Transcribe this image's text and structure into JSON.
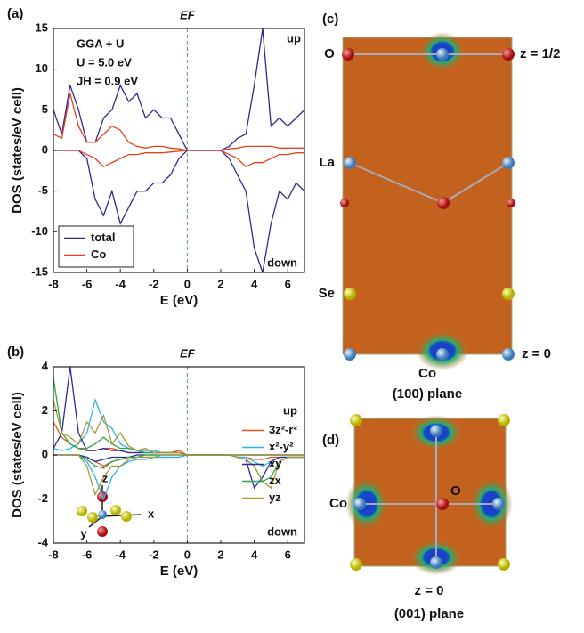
{
  "chart_data": [
    {
      "type": "line",
      "panel_label": "(a)",
      "fermi_label": "EF",
      "fermi_level": 0,
      "xlabel": "E (eV)",
      "ylabel": "DOS (states/eV cell)",
      "x": [
        -8,
        -7.5,
        -7,
        -6.5,
        -6,
        -5.5,
        -5,
        -4.5,
        -4,
        -3.5,
        -3,
        -2.5,
        -2,
        -1.5,
        -1,
        -0.5,
        0,
        0.5,
        1,
        1.5,
        2,
        2.5,
        3,
        3.5,
        4,
        4.5,
        5,
        5.5,
        6,
        6.5,
        7
      ],
      "xlim": [
        -8,
        7
      ],
      "xticks": [
        -8,
        -6,
        -4,
        -2,
        0,
        2,
        4,
        6
      ],
      "ylim": [
        -15,
        15
      ],
      "yticks": [
        -15,
        -10,
        -5,
        0,
        5,
        10,
        15
      ],
      "legend": "lower left",
      "annotations": [
        "GGA + U",
        "U = 5.0 eV",
        "JH = 0.9 eV",
        "up",
        "down"
      ],
      "series": [
        {
          "name": "total",
          "color": "#2b2b8f",
          "values": [
            5,
            2,
            8,
            5,
            1,
            1,
            4,
            5,
            8,
            6,
            7,
            4,
            5,
            4,
            4,
            2,
            0,
            0,
            0,
            0,
            0,
            0.5,
            1.5,
            2,
            8,
            15,
            3,
            4,
            3,
            4,
            5
          ],
          "values_down": [
            0,
            0,
            0,
            0,
            -1,
            -6,
            -8,
            -5,
            -9,
            -7,
            -5,
            -5,
            -4,
            -4,
            -3,
            -1,
            0,
            0,
            0,
            0,
            0,
            -1,
            -3,
            -5,
            -12,
            -15,
            -9,
            -5,
            -6,
            -4,
            -5
          ]
        },
        {
          "name": "Co",
          "color": "#e8401c",
          "values": [
            2,
            1.5,
            7,
            3,
            1,
            1,
            2,
            3,
            2.5,
            1,
            0.5,
            0.3,
            0.5,
            0.5,
            0.3,
            0.2,
            0,
            0,
            0,
            0,
            0,
            0.2,
            0.3,
            0.5,
            0.5,
            0.5,
            0.5,
            0.3,
            0.3,
            0.3,
            0.3
          ],
          "values_down": [
            0,
            0,
            0,
            0,
            -0.5,
            -1,
            -2,
            -1.5,
            -1,
            -0.5,
            -0.5,
            -0.3,
            -0.3,
            -0.3,
            -0.2,
            -0.1,
            0,
            0,
            0,
            0,
            0,
            -0.5,
            -1,
            -2,
            -1.5,
            -1.5,
            -1,
            -0.5,
            -0.5,
            -0.3,
            -0.3
          ]
        }
      ]
    },
    {
      "type": "line",
      "panel_label": "(b)",
      "fermi_label": "EF",
      "fermi_level": 0,
      "xlabel": "E (eV)",
      "ylabel": "DOS (states/eV cell)",
      "x": [
        -8,
        -7.5,
        -7,
        -6.5,
        -6,
        -5.5,
        -5,
        -4.5,
        -4,
        -3.5,
        -3,
        -2.5,
        -2,
        -1.5,
        -1,
        -0.5,
        0,
        0.5,
        1,
        1.5,
        2,
        2.5,
        3,
        3.5,
        4,
        4.5,
        5,
        5.5,
        6,
        6.5,
        7
      ],
      "xlim": [
        -8,
        7
      ],
      "xticks": [
        -8,
        -6,
        -4,
        -2,
        0,
        2,
        4,
        6
      ],
      "ylim": [
        -4,
        4
      ],
      "yticks": [
        -4,
        -2,
        0,
        2,
        4
      ],
      "legend": "upper right",
      "annotations": [
        "up",
        "down",
        "z",
        "x",
        "y"
      ],
      "series": [
        {
          "name": "3z²-r²",
          "color": "#e8501c",
          "values": [
            1.5,
            0.8,
            0.5,
            0.3,
            0.2,
            0.2,
            0.3,
            0.3,
            0.2,
            0.1,
            0.1,
            0.1,
            0.1,
            0.1,
            0.1,
            0.2,
            0,
            0,
            0,
            0,
            0,
            0,
            0,
            0,
            0,
            0,
            0,
            0,
            0,
            0,
            0
          ],
          "values_down": [
            0,
            0,
            0,
            0,
            -0.1,
            -0.3,
            -0.5,
            -0.3,
            -0.2,
            -0.1,
            -0.1,
            -0.1,
            -0.1,
            -0.1,
            -0.1,
            -0.1,
            0,
            0,
            0,
            0,
            0,
            0,
            -0.1,
            -0.1,
            -0.2,
            -0.2,
            -0.1,
            -0.1,
            -0.1,
            -0.1,
            -0.1
          ]
        },
        {
          "name": "x²-y²",
          "color": "#29b5f0",
          "values": [
            0.3,
            0.2,
            0.3,
            0.5,
            1,
            2.5,
            1.5,
            1.2,
            0.5,
            0.3,
            0.2,
            0.2,
            0.2,
            0.1,
            0.1,
            0.1,
            0,
            0,
            0,
            0,
            0,
            0,
            0,
            0,
            0,
            0,
            0,
            0,
            0,
            0,
            0
          ],
          "values_down": [
            0,
            0,
            0,
            0,
            -0.3,
            -1,
            -2,
            -1,
            -0.5,
            -0.3,
            -0.2,
            -0.2,
            -0.1,
            -0.1,
            -0.1,
            -0.1,
            0,
            0,
            0,
            0,
            0,
            0,
            -0.1,
            -0.1,
            -0.3,
            -0.5,
            -0.3,
            -0.1,
            -0.1,
            -0.1,
            -0.1
          ]
        },
        {
          "name": "xy",
          "color": "#2b2b9f",
          "values": [
            0.3,
            1,
            4,
            1,
            0.2,
            0.2,
            0.3,
            0.2,
            0.2,
            0.1,
            0.1,
            0.1,
            0.1,
            0.1,
            0.1,
            0.1,
            0,
            0,
            0,
            0,
            0,
            0,
            0,
            0,
            0,
            0,
            0,
            0,
            0,
            0,
            0
          ],
          "values_down": [
            0,
            0,
            0,
            0,
            -0.1,
            -0.3,
            -0.2,
            -0.1,
            -0.1,
            -0.1,
            0,
            0,
            0,
            0,
            0,
            0,
            0,
            0,
            0,
            0,
            0,
            0,
            -0.1,
            -0.2,
            -1.5,
            -1,
            -0.3,
            -0.1,
            -0.1,
            -0.1,
            -0.1
          ]
        },
        {
          "name": "zx",
          "color": "#2aa84a",
          "values": [
            3.5,
            1,
            0.5,
            0.3,
            0.3,
            0.5,
            0.8,
            0.5,
            0.3,
            0.3,
            0.2,
            0.1,
            0.1,
            0.1,
            0.1,
            0.1,
            0,
            0,
            0,
            0,
            0,
            0,
            0,
            0,
            0,
            0,
            0,
            0,
            0,
            0,
            0
          ],
          "values_down": [
            0,
            0,
            0,
            0,
            -0.2,
            -0.5,
            -0.6,
            -0.3,
            -0.2,
            -0.1,
            -0.1,
            0,
            0,
            0,
            0,
            0,
            0,
            0,
            0,
            0,
            0,
            0,
            -0.1,
            -0.2,
            -0.5,
            -1.2,
            -1,
            -0.3,
            -0.1,
            -0.1,
            -0.1
          ]
        },
        {
          "name": "yz",
          "color": "#a89a3a",
          "values": [
            2.5,
            1,
            0.8,
            0.5,
            1.5,
            1,
            1.8,
            0.5,
            1,
            0.4,
            0.2,
            0.3,
            0.1,
            0.1,
            0.1,
            0.1,
            0,
            0,
            0,
            0,
            0,
            0,
            0,
            0,
            0,
            0,
            0,
            0,
            0,
            0,
            0
          ],
          "values_down": [
            0,
            0,
            0,
            0,
            -0.5,
            -1.8,
            -1,
            -0.5,
            -0.5,
            -0.2,
            -0.1,
            -0.1,
            -0.1,
            0,
            0,
            0,
            0,
            0,
            0,
            0,
            0,
            0,
            -0.1,
            -0.2,
            -0.5,
            -1.2,
            -1.5,
            -0.3,
            -0.1,
            -0.1,
            -0.1
          ]
        }
      ]
    }
  ],
  "panels": {
    "c": {
      "label": "(c)",
      "o": "O",
      "z_half": "z = 1/2",
      "la": "La",
      "se": "Se",
      "z_zero": "z = 0",
      "co": "Co",
      "plane": "(100) plane"
    },
    "d": {
      "label": "(d)",
      "co": "Co",
      "o": "O",
      "z_zero": "z = 0",
      "plane": "(001) plane"
    }
  }
}
